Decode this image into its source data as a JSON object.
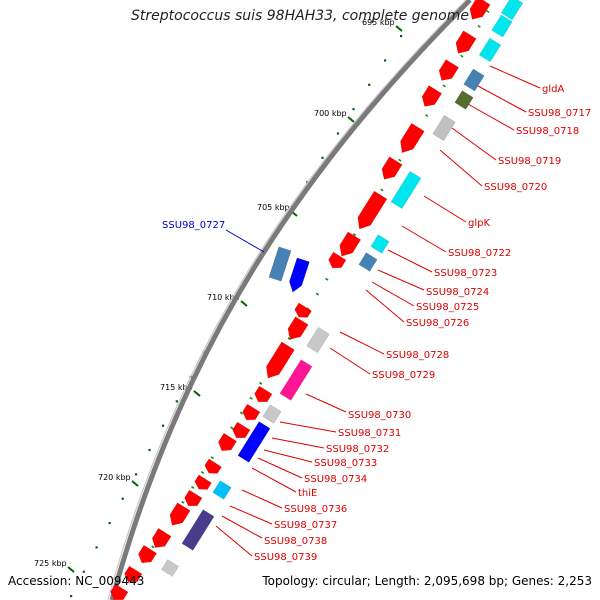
{
  "title": "Streptococcus suis 98HAH33, complete genome",
  "footer": {
    "accession": "Accession: NC_009443",
    "summary": "Topology: circular; Length: 2,095,698 bp; Genes: 2,253"
  },
  "colors": {
    "backbone": "#777777",
    "forward_gene": "#ff0000",
    "tick": "#006400",
    "label_red": "#dd0000",
    "label_blue": "#0000cc"
  },
  "scale": {
    "unit": "kbp",
    "ticks": [
      {
        "label": "695 kbp",
        "kb": 695
      },
      {
        "label": "700 kbp",
        "kb": 700
      },
      {
        "label": "705 kbp",
        "kb": 705
      },
      {
        "label": "710 kbp",
        "kb": 710
      },
      {
        "label": "715 kbp",
        "kb": 715
      },
      {
        "label": "720 kbp",
        "kb": 720
      },
      {
        "label": "725 kbp",
        "kb": 725
      }
    ]
  },
  "gene_labels": [
    {
      "text": "gldA",
      "color": "red"
    },
    {
      "text": "SSU98_0717",
      "color": "red"
    },
    {
      "text": "SSU98_0718",
      "color": "red"
    },
    {
      "text": "SSU98_0719",
      "color": "red"
    },
    {
      "text": "SSU98_0720",
      "color": "red"
    },
    {
      "text": "glpK",
      "color": "red"
    },
    {
      "text": "SSU98_0722",
      "color": "red"
    },
    {
      "text": "SSU98_0723",
      "color": "red"
    },
    {
      "text": "SSU98_0724",
      "color": "red"
    },
    {
      "text": "SSU98_0725",
      "color": "red"
    },
    {
      "text": "SSU98_0726",
      "color": "red"
    },
    {
      "text": "SSU98_0728",
      "color": "red"
    },
    {
      "text": "SSU98_0729",
      "color": "red"
    },
    {
      "text": "SSU98_0730",
      "color": "red"
    },
    {
      "text": "SSU98_0731",
      "color": "red"
    },
    {
      "text": "SSU98_0732",
      "color": "red"
    },
    {
      "text": "SSU98_0733",
      "color": "red"
    },
    {
      "text": "SSU98_0734",
      "color": "red"
    },
    {
      "text": "thiE",
      "color": "red"
    },
    {
      "text": "SSU98_0736",
      "color": "red"
    },
    {
      "text": "SSU98_0737",
      "color": "red"
    },
    {
      "text": "SSU98_0738",
      "color": "red"
    },
    {
      "text": "SSU98_0739",
      "color": "red"
    },
    {
      "text": "SSU98_0727",
      "color": "blue"
    }
  ]
}
